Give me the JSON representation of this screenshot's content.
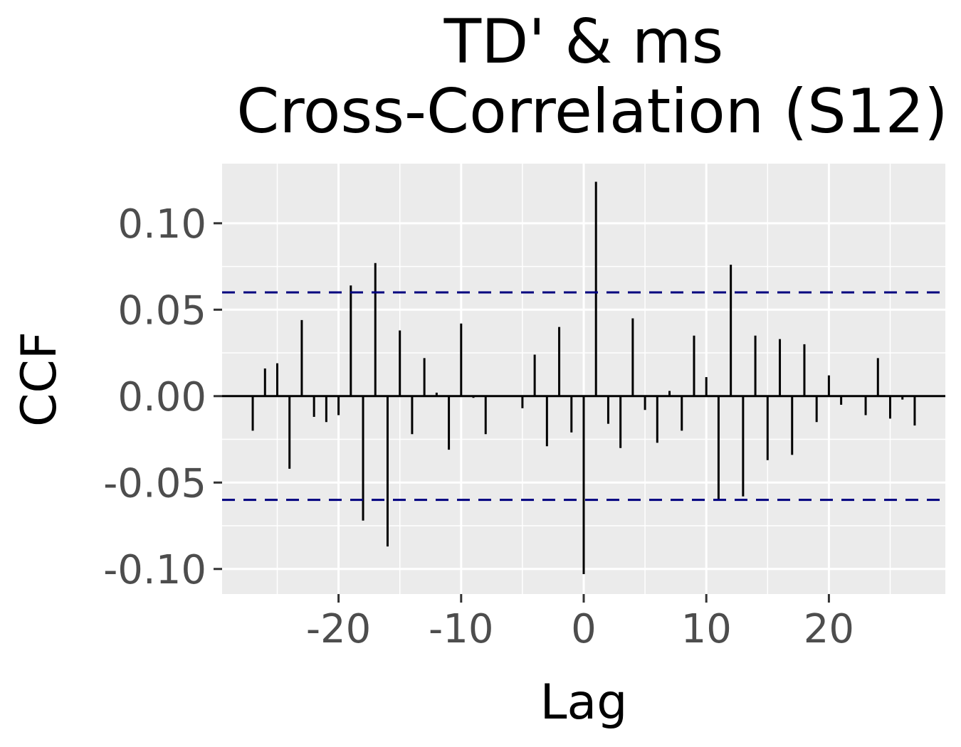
{
  "chart_data": {
    "type": "bar",
    "title_line1": "TD' & ms",
    "title_line2": "Cross-Correlation (S12)",
    "xlabel": "Lag",
    "ylabel": "CCF",
    "xlim": [
      -29.5,
      29.5
    ],
    "ylim": [
      -0.1145,
      0.1345
    ],
    "x_ticks": [
      -20,
      -10,
      0,
      10,
      20
    ],
    "y_ticks": [
      0.1,
      0.05,
      0.0,
      -0.05,
      -0.1
    ],
    "x_tick_labels": [
      "-20",
      "-10",
      "0",
      "10",
      "20"
    ],
    "y_tick_labels": [
      "0.10",
      "0.05",
      "0.00",
      "-0.05",
      "-0.10"
    ],
    "confidence_limit": 0.06,
    "confidence_color": "#00007f",
    "panel_color": "#ebebeb",
    "grid": true,
    "lags": [
      -27,
      -26,
      -25,
      -24,
      -23,
      -22,
      -21,
      -20,
      -19,
      -18,
      -17,
      -16,
      -15,
      -14,
      -13,
      -12,
      -11,
      -10,
      -9,
      -8,
      -7,
      -6,
      -5,
      -4,
      -3,
      -2,
      -1,
      0,
      1,
      2,
      3,
      4,
      5,
      6,
      7,
      8,
      9,
      10,
      11,
      12,
      13,
      14,
      15,
      16,
      17,
      18,
      19,
      20,
      21,
      22,
      23,
      24,
      25,
      26,
      27
    ],
    "values": [
      -0.02,
      0.016,
      0.019,
      -0.042,
      0.044,
      -0.012,
      -0.015,
      -0.011,
      0.064,
      -0.072,
      0.077,
      -0.087,
      0.038,
      -0.022,
      0.022,
      0.002,
      -0.031,
      0.042,
      -0.001,
      -0.022,
      0.0,
      0.0,
      -0.007,
      0.024,
      -0.029,
      0.04,
      -0.021,
      -0.103,
      0.124,
      -0.016,
      -0.03,
      0.045,
      -0.008,
      -0.027,
      0.003,
      -0.02,
      0.035,
      0.011,
      -0.06,
      0.076,
      -0.058,
      0.035,
      -0.037,
      0.033,
      -0.034,
      0.03,
      -0.015,
      0.012,
      -0.005,
      0.0,
      -0.011,
      0.022,
      -0.013,
      -0.002,
      -0.017
    ]
  }
}
